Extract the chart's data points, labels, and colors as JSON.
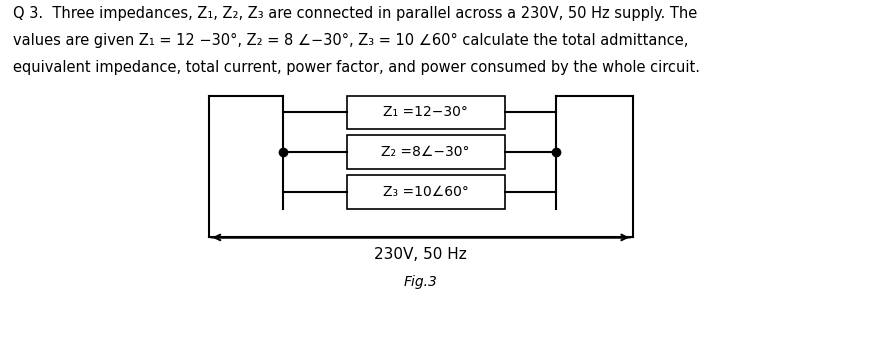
{
  "para_line1": "Q 3.  Three impedances, Z₁, Z₂, Z₃ are connected in parallel across a 230V, 50 Hz supply. The",
  "para_line2": "values are given Z₁ = 12 −30°, Z₂ = 8 ∠−30°, Z₃ = 10 ∠60° calculate the total admittance,",
  "para_line3": "equivalent impedance, total current, power factor, and power consumed by the whole circuit.",
  "box_labels": [
    "Z₁ =12−30°",
    "Z₂ =8∠−30°",
    "Z₃ =10∠60°"
  ],
  "supply_label": "230V, 50 Hz",
  "fig_label": "Fig.3",
  "bg_color": "#ffffff",
  "text_color": "#000000",
  "box_color": "#ffffff",
  "box_edge_color": "#000000",
  "line_color": "#000000",
  "font_size_text": 10.5,
  "font_size_box": 10,
  "font_size_supply": 11,
  "font_size_fig": 10
}
